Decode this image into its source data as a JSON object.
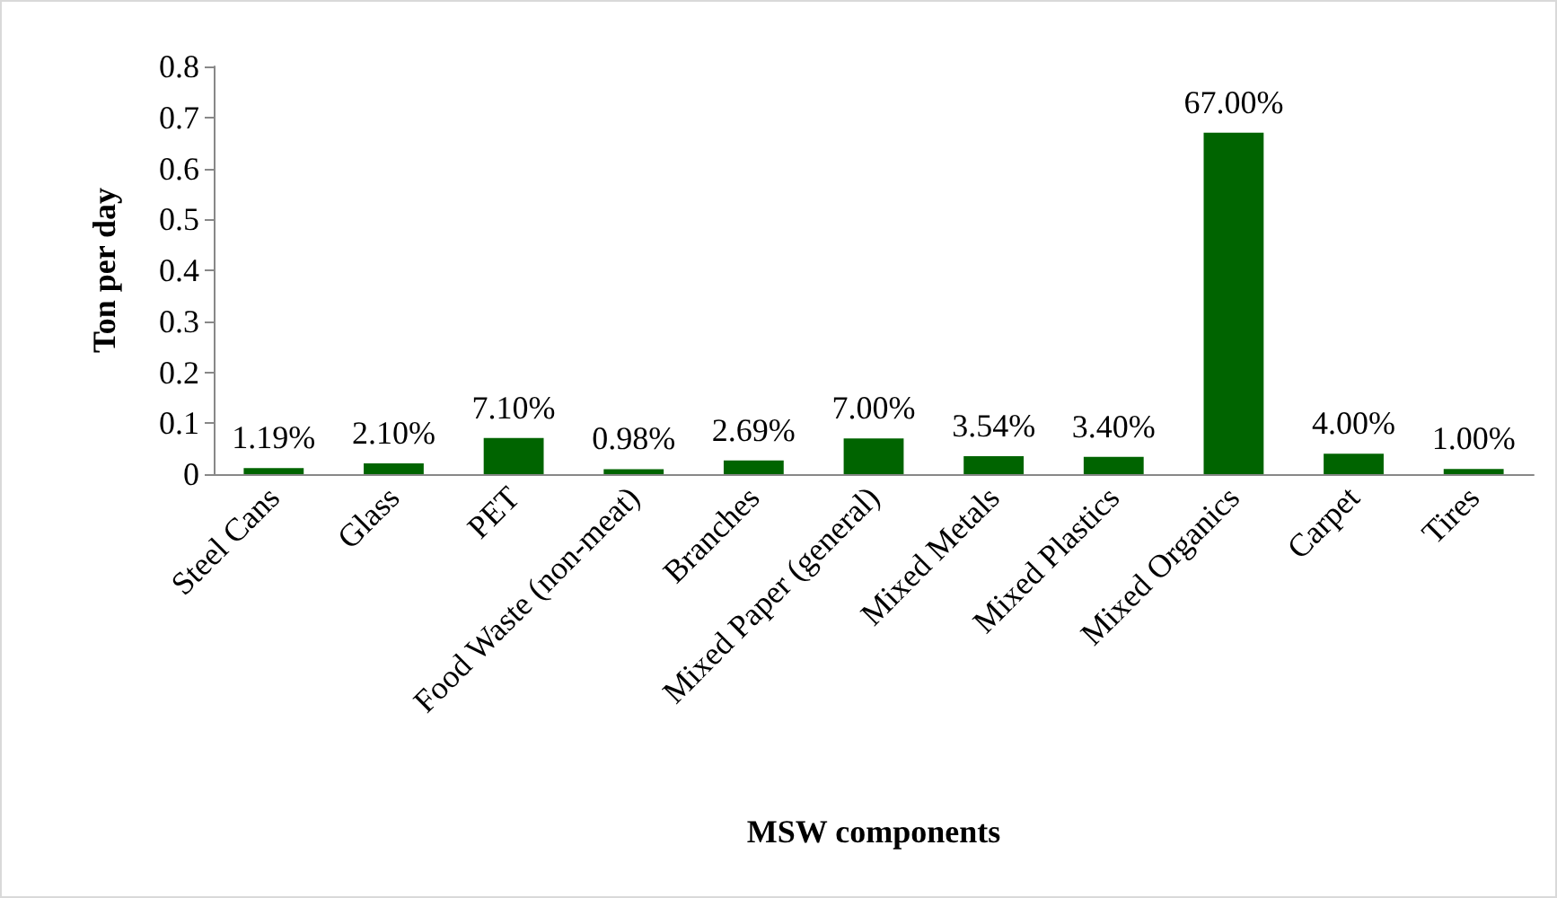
{
  "chart_data": {
    "type": "bar",
    "xlabel": "MSW components",
    "ylabel": "Ton per day",
    "categories": [
      "Steel Cans",
      "Glass",
      "PET",
      "Food Waste (non-meat)",
      "Branches",
      "Mixed Paper (general)",
      "Mixed Metals",
      "Mixed Plastics",
      "Mixed Organics",
      "Carpet",
      "Tires"
    ],
    "values": [
      0.0119,
      0.021,
      0.071,
      0.0098,
      0.0269,
      0.07,
      0.0354,
      0.034,
      0.67,
      0.04,
      0.01
    ],
    "value_labels": [
      "1.19%",
      "2.10%",
      "7.10%",
      "0.98%",
      "2.69%",
      "7.00%",
      "3.54%",
      "3.40%",
      "67.00%",
      "4.00%",
      "1.00%"
    ],
    "color": "#006400",
    "ylim": [
      0,
      0.8
    ],
    "yticks": [
      0,
      0.1,
      0.2,
      0.3,
      0.4,
      0.5,
      0.6,
      0.7,
      0.8
    ],
    "grid": false
  }
}
